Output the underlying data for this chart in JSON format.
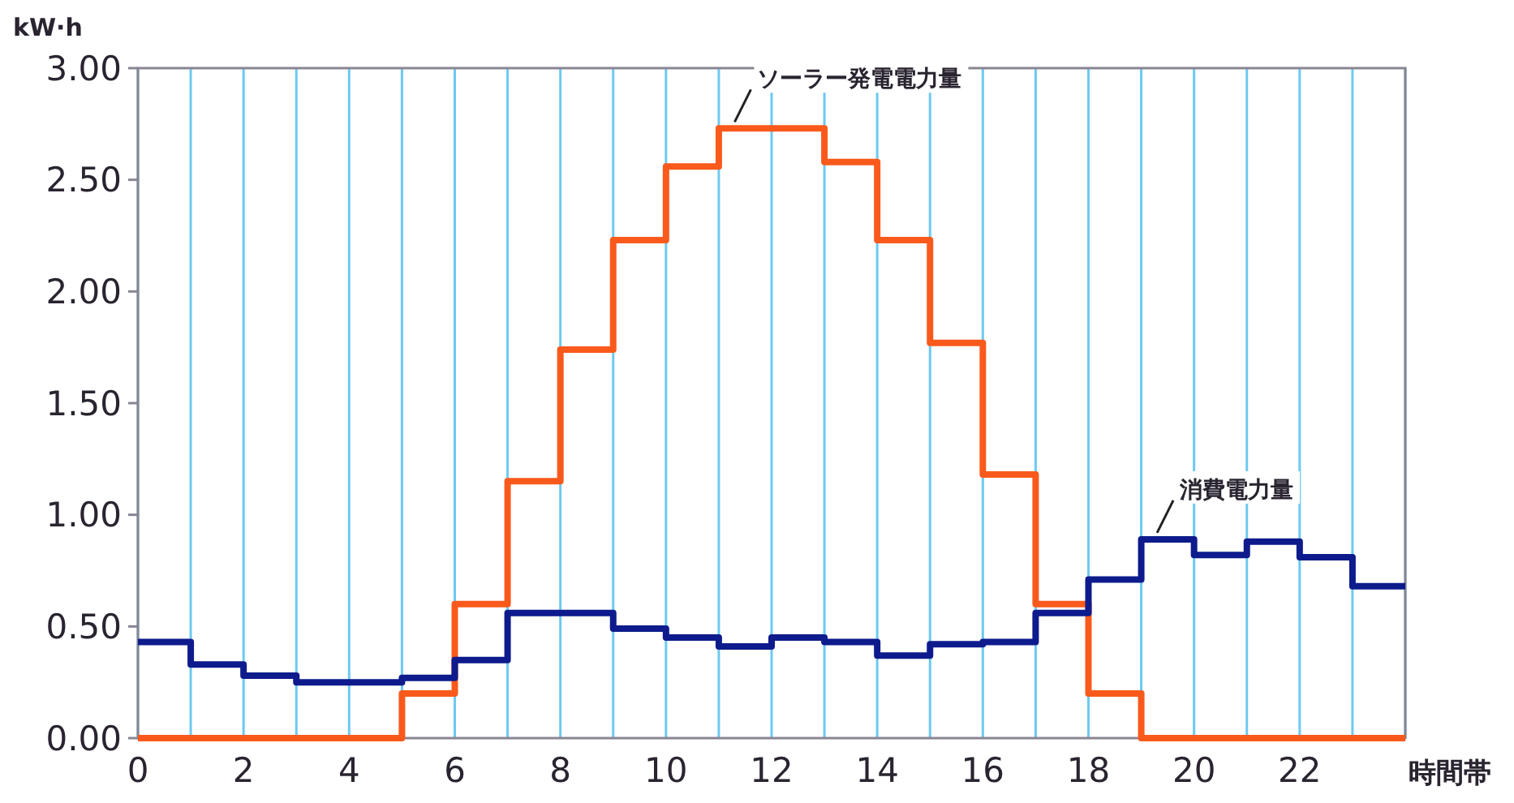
{
  "chart_data": {
    "type": "step",
    "ylabel": "kW·h",
    "xlabel": "時間帯",
    "x": [
      0,
      1,
      2,
      3,
      4,
      5,
      6,
      7,
      8,
      9,
      10,
      11,
      12,
      13,
      14,
      15,
      16,
      17,
      18,
      19,
      20,
      21,
      22,
      23,
      24
    ],
    "xlim": [
      0,
      24
    ],
    "xticks": [
      0,
      {
        "value": 1,
        "label": null
      },
      2,
      {
        "value": 3,
        "label": null
      },
      4,
      {
        "value": 5,
        "label": null
      },
      6,
      {
        "value": 7,
        "label": null
      },
      8,
      {
        "value": 9,
        "label": null
      },
      10,
      {
        "value": 11,
        "label": null
      },
      12,
      {
        "value": 13,
        "label": null
      },
      14,
      {
        "value": 15,
        "label": null
      },
      16,
      {
        "value": 17,
        "label": null
      },
      18,
      {
        "value": 19,
        "label": null
      },
      20,
      {
        "value": 21,
        "label": null
      },
      22,
      {
        "value": 23,
        "label": null
      },
      {
        "value": 24,
        "label": null
      }
    ],
    "ylim": [
      0,
      3
    ],
    "yticks": [
      {
        "value": 0,
        "label": "0.00"
      },
      {
        "value": 0.5,
        "label": "0.50"
      },
      {
        "value": 1,
        "label": "1.00"
      },
      {
        "value": 1.5,
        "label": "1.50"
      },
      {
        "value": 2,
        "label": "2.00"
      },
      {
        "value": 2.5,
        "label": "2.50"
      },
      {
        "value": 3,
        "label": "3.00"
      }
    ],
    "grid": "x",
    "line_style": "solid",
    "series": [
      {
        "name": "ソーラー発電電力量",
        "color": "#f95a1c",
        "values": [
          0,
          0,
          0,
          0,
          0,
          0.2,
          0.6,
          1.15,
          1.74,
          2.23,
          2.56,
          2.73,
          2.73,
          2.58,
          2.23,
          1.77,
          1.18,
          0.6,
          0.2,
          0,
          0,
          0,
          0,
          0,
          0
        ]
      },
      {
        "name": "消費電力量",
        "color": "#0d1b8c",
        "values": [
          0.43,
          0.33,
          0.28,
          0.25,
          0.25,
          0.27,
          0.35,
          0.56,
          0.56,
          0.49,
          0.45,
          0.41,
          0.45,
          0.43,
          0.37,
          0.42,
          0.43,
          0.56,
          0.71,
          0.89,
          0.82,
          0.88,
          0.81,
          0.68,
          0.68
        ]
      }
    ]
  }
}
